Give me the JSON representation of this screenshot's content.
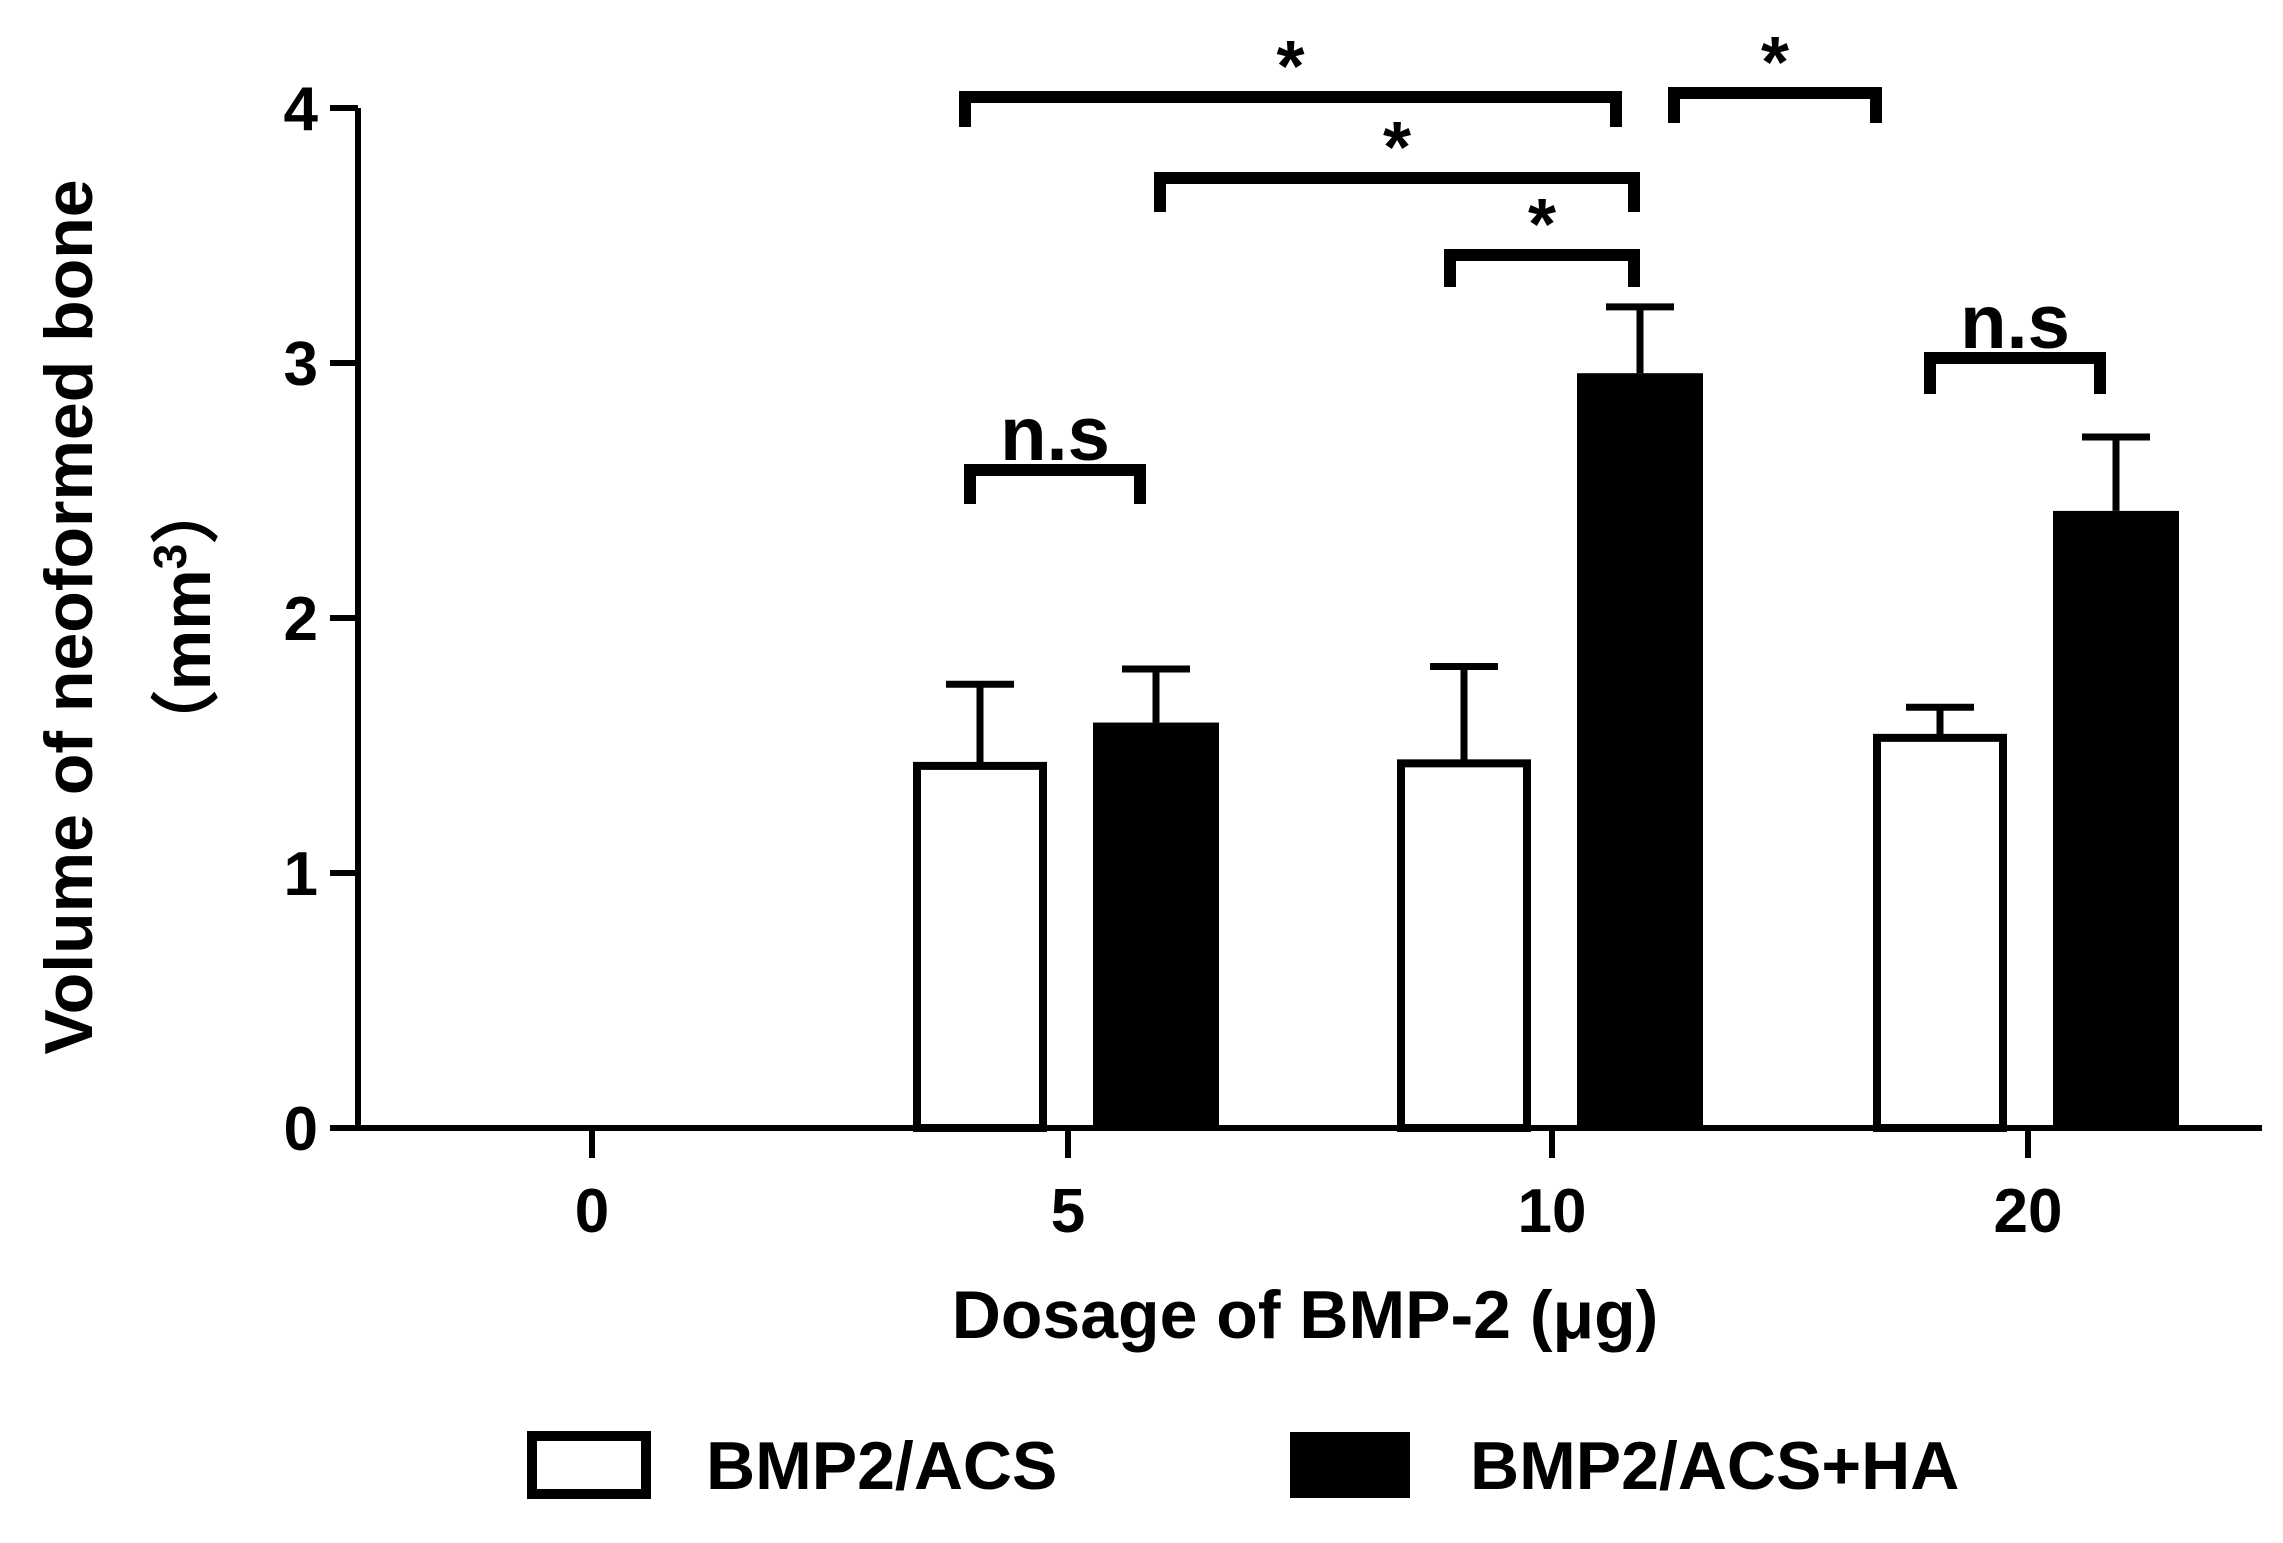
{
  "chart_data": {
    "type": "bar",
    "categories": [
      "0",
      "5",
      "10",
      "20"
    ],
    "series": [
      {
        "name": "BMP2/ACS",
        "values": [
          0,
          1.42,
          1.43,
          1.53
        ],
        "errors": [
          0,
          0.32,
          0.38,
          0.12
        ],
        "fill": "#ffffff"
      },
      {
        "name": "BMP2/ACS+HA",
        "values": [
          0,
          1.59,
          2.96,
          2.42
        ],
        "errors": [
          0,
          0.21,
          0.26,
          0.29
        ],
        "fill": "#000000"
      }
    ],
    "xlabel": "Dosage of BMP-2 (μg)",
    "ylabel_line1": "Volume of neoformed bone",
    "ylabel_line2_open": "（mm",
    "ylabel_line2_sup": "3",
    "ylabel_line2_close": "）",
    "ylim": [
      0,
      4
    ],
    "yticks": [
      "0",
      "1",
      "2",
      "3",
      "4"
    ],
    "grid": false,
    "legend_position": "bottom",
    "significance": [
      {
        "label": "*",
        "from": "5 BMP2/ACS",
        "to": "10 BMP2/ACS+HA"
      },
      {
        "label": "*",
        "from": "10 BMP2/ACS+HA",
        "to": "20 BMP2/ACS"
      },
      {
        "label": "*",
        "from": "5 BMP2/ACS+HA",
        "to": "10 BMP2/ACS+HA"
      },
      {
        "label": "*",
        "from": "10 BMP2/ACS",
        "to": "10 BMP2/ACS+HA"
      },
      {
        "label": "n.s",
        "from": "5 BMP2/ACS",
        "to": "5 BMP2/ACS+HA"
      },
      {
        "label": "n.s",
        "from": "20 BMP2/ACS",
        "to": "20 BMP2/ACS+HA"
      }
    ]
  }
}
